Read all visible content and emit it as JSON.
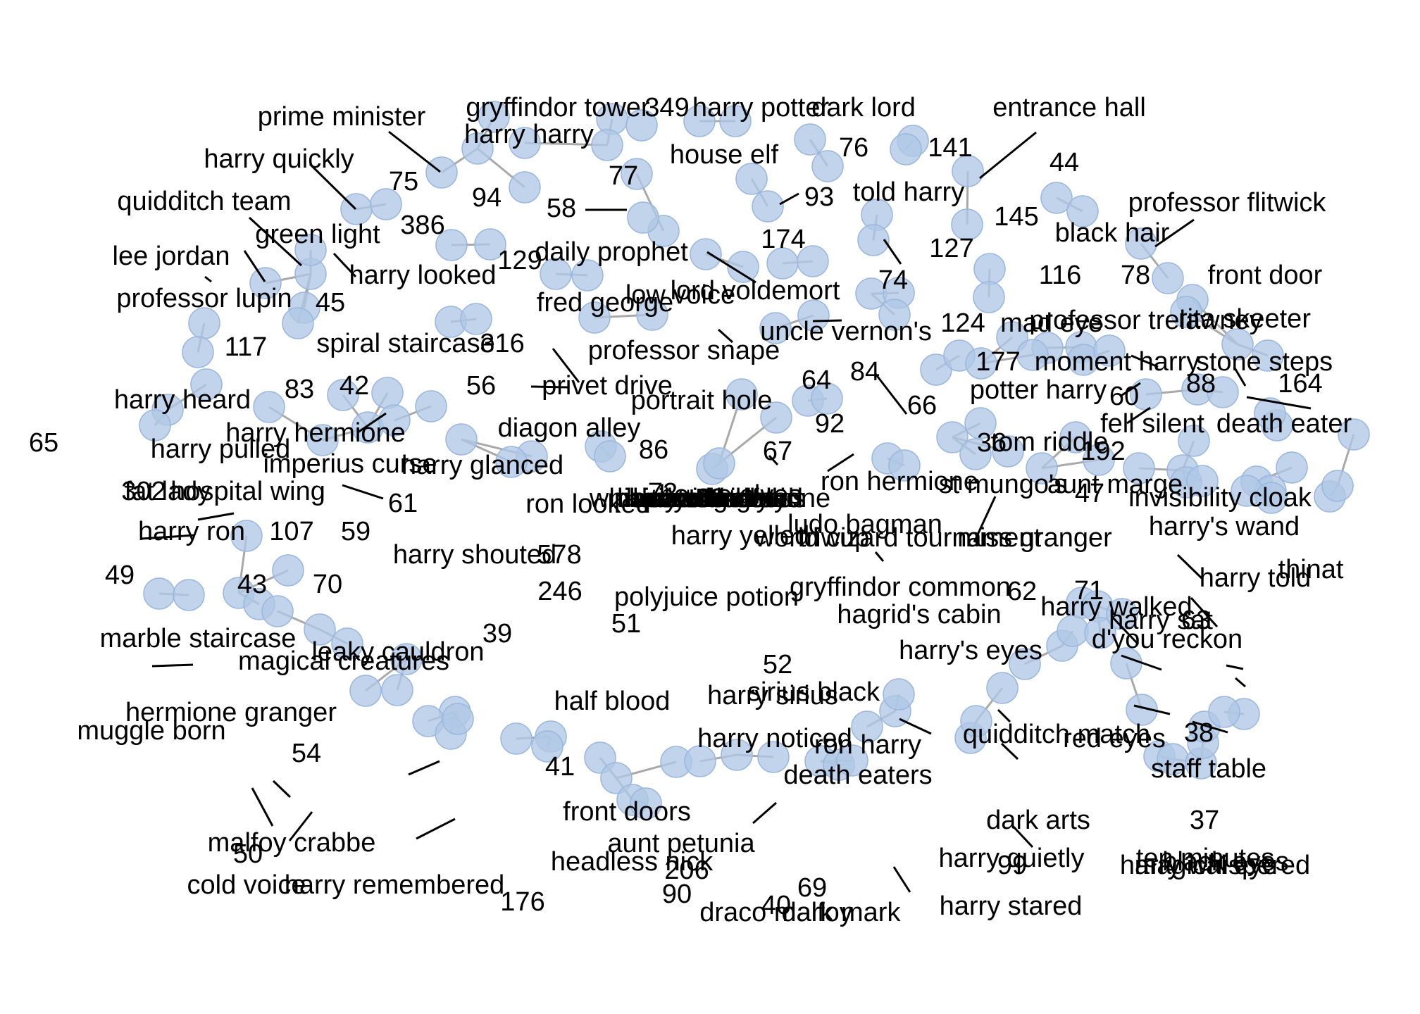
{
  "colors": {
    "node_fill": "#b0c8e6",
    "node_stroke": "#9bb7dd",
    "edge": "#a9a9a9",
    "leader": "#000000",
    "text": "#000000",
    "background": "#ffffff"
  },
  "labels": [
    "prime minister",
    "gryffindor tower",
    "349",
    "harry potter",
    "dark lord",
    "entrance hall",
    "harry harry",
    "76",
    "141",
    "harry quickly",
    "75",
    "house elf",
    "77",
    "44",
    "94",
    "93",
    "told harry",
    "145",
    "quidditch team",
    "58",
    "professor flitwick",
    "386",
    "green light",
    "daily prophet",
    "174",
    "127",
    "black hair",
    "lee jordan",
    "129",
    "harry looked",
    "74",
    "116",
    "78",
    "front door",
    "fred george",
    "lord voldemort",
    "professor lupin",
    "45",
    "low voice",
    "professor trelawney",
    "rita skeeter",
    "117",
    "spiral staircase",
    "316",
    "uncle vernon's",
    "124",
    "mad eye",
    "professor snape",
    "177",
    "moment harry",
    "stone steps",
    "64",
    "84",
    "83",
    "42",
    "56",
    "privet drive",
    "88",
    "164",
    "harry heard",
    "portrait hole",
    "66",
    "potter harry",
    "60",
    "92",
    "fell silent",
    "death eater",
    "harry hermione",
    "diagon alley",
    "65",
    "86",
    "36",
    "tom riddle",
    "harry pulled",
    "192",
    "imperius curse",
    "67",
    "harry glanced",
    "fat lady",
    "hospital wing",
    "302",
    "ron hermione",
    "st mungo's",
    "aunt marge",
    "72",
    "house elves",
    "47",
    "invisibility cloak",
    "61",
    "ron looked",
    "harry ron",
    "107",
    "59",
    "ludo bagman",
    "harry's wand",
    "harry yelled",
    "world cup",
    "578",
    "harry shouted",
    "miss granger",
    "triwizard tournament",
    "thinat",
    "49",
    "43",
    "70",
    "harry told",
    "71",
    "62",
    "gryffindor common",
    "polyjuice potion",
    "246",
    "harry walked",
    "63",
    "harry sat",
    "51",
    "hagrid's cabin",
    "marble staircase",
    "39",
    "d'you reckon",
    "harry's eyes",
    "magical creatures",
    "leaky cauldron",
    "52",
    "harry sirius",
    "sirius black",
    "half blood",
    "hermione granger",
    "harry noticed",
    "ron harry",
    "38",
    "quidditch match",
    "muggle born",
    "red eyes",
    "54",
    "41",
    "staff table",
    "death eaters",
    "dark arts",
    "front doors",
    "37",
    "aunt petunia",
    "50",
    "malfoy crabbe",
    "headless nick",
    "black eyes",
    "99",
    "magical eye",
    "206",
    "harry whispered",
    "90",
    "cold voice",
    "harry remembered",
    "69",
    "harry stared",
    "176",
    "draco malfoy",
    "dark mark",
    "harry quietly",
    "ten minutes",
    "40",
    "harry wondered",
    "46",
    "lucius malfoy",
    "phineas nigellus",
    "53",
    "whispered hermione",
    "68",
    "viktor krum",
    "harry watched",
    "sorting hat",
    "time harry",
    "dean thomas"
  ]
}
